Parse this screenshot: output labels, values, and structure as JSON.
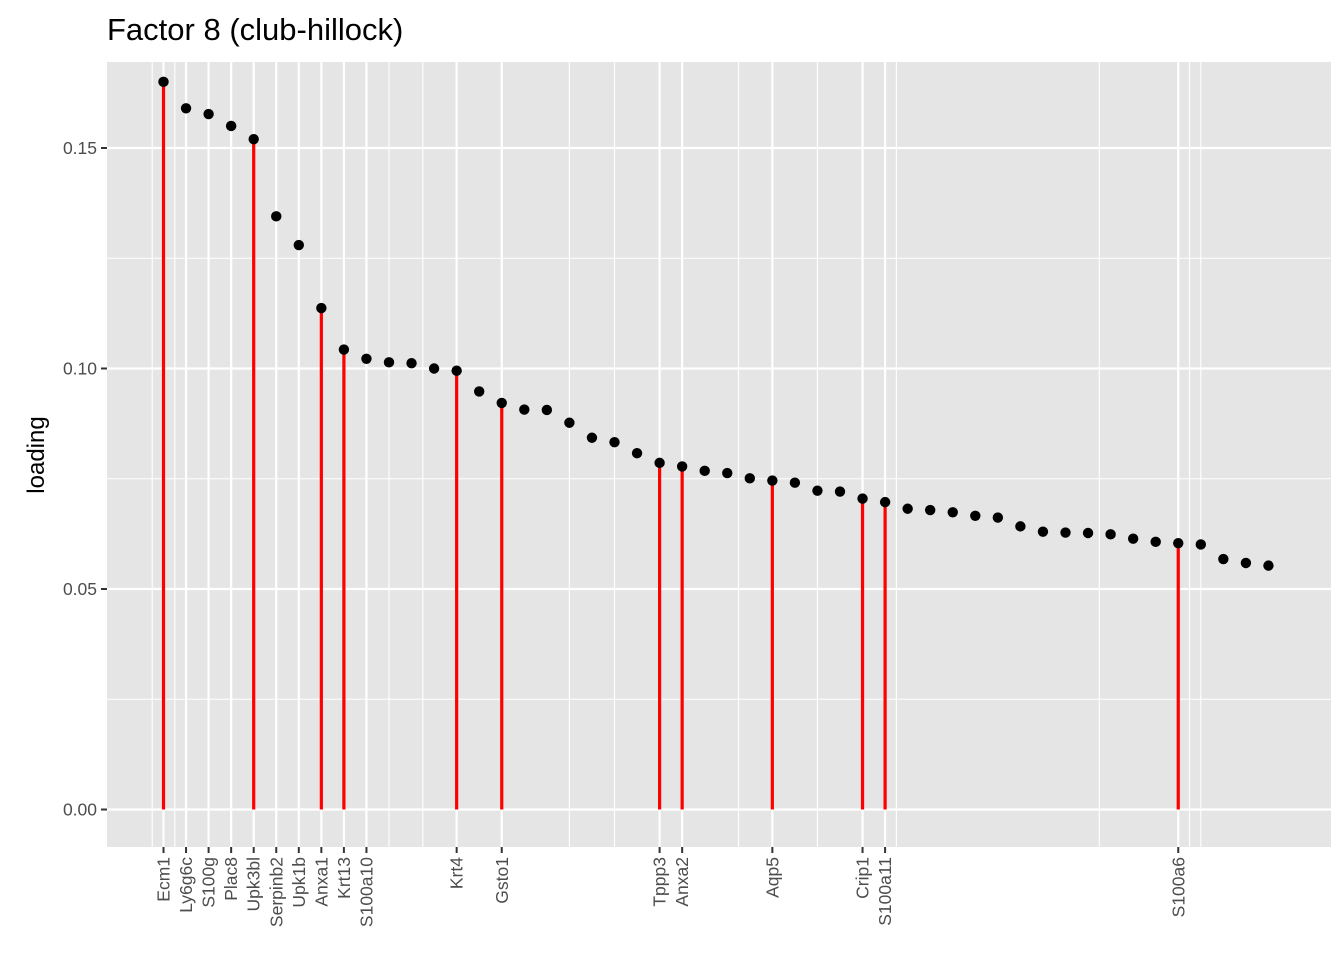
{
  "chart_data": {
    "type": "scatter",
    "title": "Factor 8 (club-hillock)",
    "xlabel": "",
    "ylabel": "loading",
    "ylim": [
      -0.0085,
      0.1695
    ],
    "yticks": [
      0.0,
      0.05,
      0.1,
      0.15
    ],
    "ytick_labels": [
      "0.00",
      "0.05",
      "0.10",
      "0.15"
    ],
    "grid": true,
    "n_points": 50,
    "values": [
      0.165,
      0.159,
      0.1577,
      0.155,
      0.152,
      0.1345,
      0.128,
      0.1137,
      0.1043,
      0.1022,
      0.1014,
      0.1012,
      0.1,
      0.0995,
      0.0948,
      0.0922,
      0.0907,
      0.0906,
      0.0877,
      0.0843,
      0.0833,
      0.0808,
      0.0786,
      0.0778,
      0.0768,
      0.0763,
      0.0751,
      0.0746,
      0.0741,
      0.0723,
      0.0721,
      0.0705,
      0.0697,
      0.0682,
      0.0679,
      0.0674,
      0.0666,
      0.0662,
      0.0642,
      0.063,
      0.0628,
      0.0627,
      0.0624,
      0.0614,
      0.0607,
      0.0604,
      0.0601,
      0.0568,
      0.0559,
      0.0553
    ],
    "labeled_points": [
      {
        "label": "Ecm1",
        "rank": 1,
        "highlight": true
      },
      {
        "label": "Ly6g6c",
        "rank": 2,
        "highlight": false
      },
      {
        "label": "S100g",
        "rank": 3,
        "highlight": false
      },
      {
        "label": "Plac8",
        "rank": 4,
        "highlight": false
      },
      {
        "label": "Upk3bl",
        "rank": 5,
        "highlight": true
      },
      {
        "label": "Serpinb2",
        "rank": 6,
        "highlight": false
      },
      {
        "label": "Upk1b",
        "rank": 7,
        "highlight": false
      },
      {
        "label": "Anxa1",
        "rank": 8,
        "highlight": true
      },
      {
        "label": "Krt13",
        "rank": 9,
        "highlight": true
      },
      {
        "label": "S100a10",
        "rank": 10,
        "highlight": false
      },
      {
        "label": "Krt4",
        "rank": 14,
        "highlight": true
      },
      {
        "label": "Gsto1",
        "rank": 16,
        "highlight": true
      },
      {
        "label": "Tppp3",
        "rank": 23,
        "highlight": true
      },
      {
        "label": "Anxa2",
        "rank": 24,
        "highlight": true
      },
      {
        "label": "Aqp5",
        "rank": 28,
        "highlight": true
      },
      {
        "label": "Crip1",
        "rank": 32,
        "highlight": true
      },
      {
        "label": "S100a11",
        "rank": 33,
        "highlight": true
      },
      {
        "label": "S100a6",
        "rank": 46,
        "highlight": true
      }
    ],
    "extra_gridline_ranks": [
      0.5,
      1.5,
      7,
      11,
      12.5,
      19,
      21,
      26.5,
      30,
      33.5,
      42.5,
      46.5,
      47
    ],
    "colors": {
      "panel": "#e5e5e5",
      "grid": "#ffffff",
      "point": "#000000",
      "segment": "#ff0000",
      "tick_label": "#4d4d4d"
    }
  }
}
